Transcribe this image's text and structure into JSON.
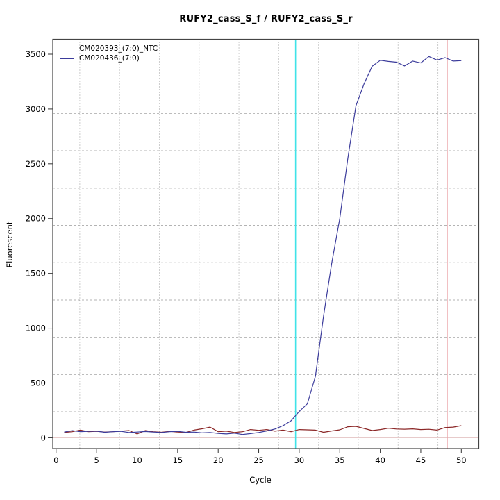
{
  "chart_data": {
    "type": "line",
    "title": "RUFY2_cass_S_f / RUFY2_cass_S_r",
    "xlabel": "Cycle",
    "ylabel": "Fluorescent",
    "xlim": [
      -0.41,
      52.16
    ],
    "ylim": [
      -99,
      3637
    ],
    "x_ticks": [
      0,
      5,
      10,
      15,
      20,
      25,
      30,
      35,
      40,
      45,
      50
    ],
    "y_ticks": [
      0,
      500,
      1000,
      1500,
      2000,
      2500,
      3000,
      3500
    ],
    "x": [
      1,
      2,
      3,
      4,
      5,
      6,
      7,
      8,
      9,
      10,
      11,
      12,
      13,
      14,
      15,
      16,
      17,
      18,
      19,
      20,
      21,
      22,
      23,
      24,
      25,
      26,
      27,
      28,
      29,
      30,
      31,
      32,
      33,
      34,
      35,
      36,
      37,
      38,
      39,
      40,
      41,
      42,
      43,
      44,
      45,
      46,
      47,
      48,
      49,
      50
    ],
    "series": [
      {
        "name": "CM020393_(7:0)_NTC",
        "color": "#8b2626",
        "values": [
          48,
          55,
          70,
          55,
          58,
          52,
          55,
          60,
          66,
          34,
          66,
          55,
          50,
          58,
          52,
          48,
          70,
          82,
          97,
          55,
          60,
          48,
          55,
          75,
          68,
          75,
          60,
          70,
          55,
          75,
          72,
          70,
          50,
          62,
          72,
          100,
          104,
          85,
          66,
          75,
          87,
          80,
          78,
          81,
          75,
          77,
          70,
          93,
          97,
          110
        ]
      },
      {
        "name": "CM020436_(7:0)",
        "color": "#3b3b9b",
        "values": [
          52,
          65,
          55,
          58,
          60,
          50,
          55,
          58,
          48,
          52,
          57,
          52,
          48,
          55,
          58,
          50,
          52,
          45,
          48,
          40,
          35,
          42,
          30,
          38,
          48,
          62,
          80,
          110,
          155,
          240,
          310,
          560,
          1110,
          1590,
          2000,
          2550,
          3030,
          3230,
          3390,
          3444,
          3434,
          3427,
          3393,
          3437,
          3420,
          3479,
          3447,
          3468,
          3437,
          3441
        ]
      }
    ],
    "ref_lines": [
      {
        "axis": "y",
        "value": 5,
        "color": "#a02c2c",
        "name": "threshold-line"
      },
      {
        "axis": "x",
        "value": 29.55,
        "color": "#3fe3e8",
        "name": "ct-marker-line"
      },
      {
        "axis": "x",
        "value": 48.25,
        "color": "#eaa2a6",
        "name": "cycle-48-marker-line"
      }
    ],
    "grid": {
      "on": true,
      "vertical_cycles": [
        2.92,
        7.83,
        12.74,
        17.65,
        22.56,
        27.47,
        32.38,
        37.29,
        42.2,
        47.11
      ],
      "horizontal_values": [
        237,
        577,
        917,
        1257,
        1598,
        1938,
        2278,
        2619,
        2959,
        3300
      ]
    },
    "legend_position": "top-left"
  }
}
